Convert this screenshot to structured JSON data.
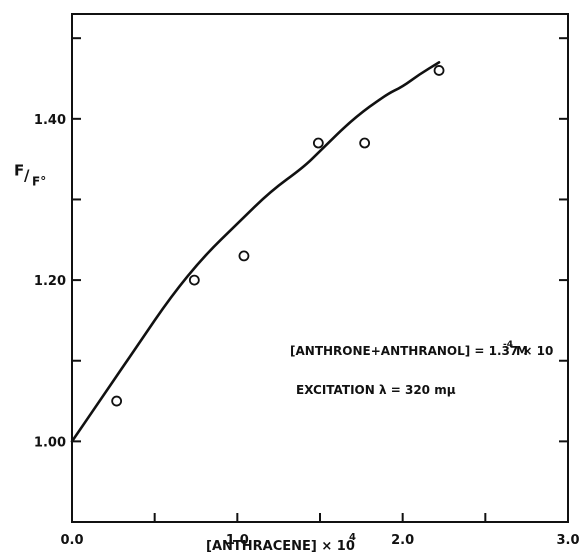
{
  "chart_data": {
    "type": "scatter",
    "title": "",
    "xlabel": "[ANTHRACENE] × 10",
    "xlabel_superscript": "4",
    "ylabel": "F",
    "ylabel_subscript": "F°",
    "xlim": [
      0.0,
      3.0
    ],
    "ylim": [
      0.9,
      1.53
    ],
    "x_ticks": [
      0.0,
      0.5,
      1.0,
      1.5,
      2.0,
      2.5,
      3.0
    ],
    "x_tick_labels": [
      "0.0",
      "",
      "1.0",
      "",
      "2.0",
      "",
      "3.0"
    ],
    "y_ticks": [
      1.0,
      1.1,
      1.2,
      1.3,
      1.4,
      1.5
    ],
    "y_tick_labels": [
      "1.00",
      "",
      "1.20",
      "",
      "1.40",
      ""
    ],
    "grid": false,
    "series": [
      {
        "type": "scatter",
        "marker": "open-circle",
        "x": [
          0.27,
          0.74,
          1.04,
          1.49,
          1.77,
          2.22
        ],
        "y": [
          1.05,
          1.2,
          1.23,
          1.37,
          1.37,
          1.46
        ]
      },
      {
        "type": "line",
        "x": [
          0.0,
          0.2,
          0.4,
          0.6,
          0.8,
          1.0,
          1.2,
          1.4,
          1.5,
          1.7,
          1.9,
          2.0,
          2.1,
          2.22
        ],
        "y": [
          1.0,
          1.06,
          1.12,
          1.18,
          1.23,
          1.27,
          1.31,
          1.34,
          1.36,
          1.4,
          1.43,
          1.44,
          1.455,
          1.47
        ]
      }
    ],
    "annotations": [
      {
        "text": "[ANTHRONE+ANTHRANOL] = 1.37 × 10",
        "superscript": "-4",
        "suffix": "M"
      },
      {
        "text": "EXCITATION λ = 320 mμ"
      }
    ],
    "colors": {
      "ink": "#111111",
      "background": "#ffffff"
    }
  }
}
